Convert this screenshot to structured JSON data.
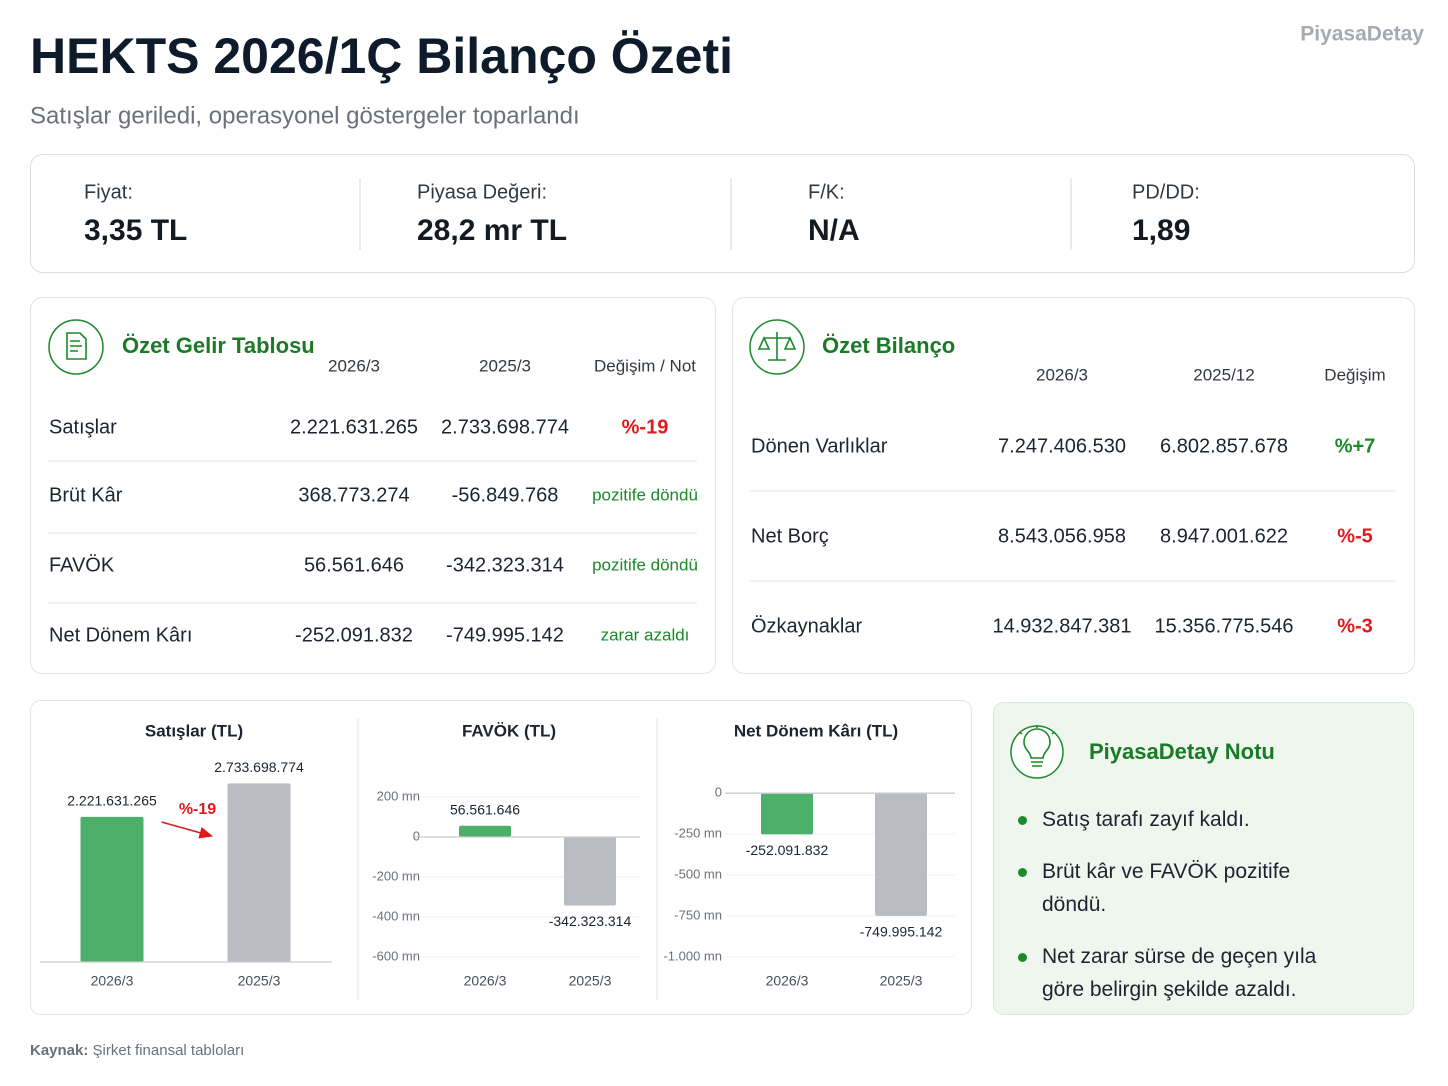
{
  "brand": "PiyasaDetay",
  "header": {
    "title": "HEKTS 2026/1Ç Bilanço Özeti",
    "subtitle": "Satışlar geriledi, operasyonel göstergeler toparlandı"
  },
  "metrics": [
    {
      "label": "Fiyat:",
      "value": "3,35 TL"
    },
    {
      "label": "Piyasa Değeri:",
      "value": "28,2 mr TL"
    },
    {
      "label": "F/K:",
      "value": "N/A"
    },
    {
      "label": "PD/DD:",
      "value": "1,89"
    }
  ],
  "income": {
    "title": "Özet Gelir Tablosu",
    "columns": [
      "2026/3",
      "2025/3",
      "Değişim / Not"
    ],
    "rows": [
      {
        "label": "Satışlar",
        "values": [
          "2.221.631.265",
          "2.733.698.774"
        ],
        "change": "%-19",
        "change_color": "#e0191d"
      },
      {
        "label": "Brüt Kâr",
        "values": [
          "368.773.274",
          "-56.849.768"
        ],
        "change": "pozitife döndü",
        "change_color": "#1a8a2a"
      },
      {
        "label": "FAVÖK",
        "values": [
          "56.561.646",
          "-342.323.314"
        ],
        "change": "pozitife döndü",
        "change_color": "#1a8a2a"
      },
      {
        "label": "Net Dönem Kârı",
        "values": [
          "-252.091.832",
          "-749.995.142"
        ],
        "change": "zarar azaldı",
        "change_color": "#1a8a2a"
      }
    ]
  },
  "balance": {
    "title": "Özet Bilanço",
    "columns": [
      "2026/3",
      "2025/12",
      "Değişim"
    ],
    "rows": [
      {
        "label": "Dönen Varlıklar",
        "values": [
          "7.247.406.530",
          "6.802.857.678"
        ],
        "change": "%+7",
        "change_color": "#1a8a2a"
      },
      {
        "label": "Net Borç",
        "values": [
          "8.543.056.958",
          "8.947.001.622"
        ],
        "change": "%-5",
        "change_color": "#e0191d"
      },
      {
        "label": "Özkaynaklar",
        "values": [
          "14.932.847.381",
          "15.356.775.546"
        ],
        "change": "%-3",
        "change_color": "#e0191d"
      }
    ]
  },
  "chart_data": [
    {
      "type": "bar",
      "title": "Satışlar (TL)",
      "categories": [
        "2026/3",
        "2025/3"
      ],
      "values": [
        2221631265,
        2733698774
      ],
      "value_labels": [
        "2.221.631.265",
        "2.733.698.774"
      ],
      "colors": [
        "#4caf6a",
        "#b9bcc3"
      ],
      "ylim": [
        0,
        3000000000
      ],
      "annotation": "%-19",
      "annotation_color": "#e0191d"
    },
    {
      "type": "bar",
      "title": "FAVÖK (TL)",
      "categories": [
        "2026/3",
        "2025/3"
      ],
      "values": [
        56561646,
        -342323314
      ],
      "value_labels": [
        "56.561.646",
        "-342.323.314"
      ],
      "colors": [
        "#4caf6a",
        "#b9bcc3"
      ],
      "ylim": [
        -650000000,
        250000000
      ],
      "grid": true,
      "yticks": [
        {
          "value": 200000000,
          "label": "200 mn"
        },
        0,
        {
          "value": -200000000,
          "label": "-200 mn"
        },
        {
          "value": -400000000,
          "label": "-400 mn"
        },
        {
          "value": -600000000,
          "label": "-600 mn"
        }
      ]
    },
    {
      "type": "bar",
      "title": "Net Dönem Kârı (TL)",
      "categories": [
        "2026/3",
        "2025/3"
      ],
      "values": [
        -252091832,
        -749995142
      ],
      "value_labels": [
        "-252.091.832",
        "-749.995.142"
      ],
      "colors": [
        "#4caf6a",
        "#b9bcc3"
      ],
      "ylim": [
        -1050000000,
        50000000
      ],
      "grid": true,
      "yticks": [
        0,
        {
          "value": -250000000,
          "label": "-250 mn"
        },
        {
          "value": -500000000,
          "label": "-500 mn"
        },
        {
          "value": -750000000,
          "label": "-750 mn"
        },
        {
          "value": -1000000000,
          "label": "-1.000 mn"
        }
      ]
    }
  ],
  "note": {
    "title": "PiyasaDetay Notu",
    "items": [
      "Satış tarafı zayıf kaldı.",
      "Brüt kâr ve FAVÖK pozitife döndü.",
      "Net zarar sürse de geçen yıla göre belirgin şekilde azaldı."
    ]
  },
  "source": {
    "label": "Kaynak:",
    "text": "Şirket finansal tabloları"
  }
}
